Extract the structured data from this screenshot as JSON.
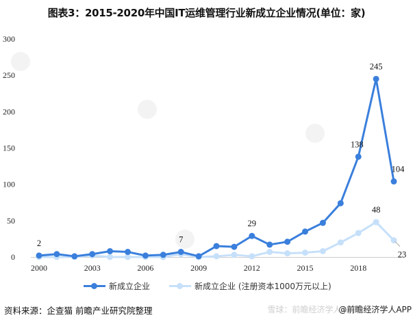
{
  "title": "图表3：2015-2020年中国IT运维管理行业新成立企业情况(单位：家)",
  "chart_data": {
    "type": "line",
    "title": "图表3：2015-2020年中国IT运维管理行业新成立企业情况(单位：家)",
    "xlabel": "",
    "ylabel": "",
    "ylim": [
      0,
      300
    ],
    "yticks": [
      0,
      50,
      100,
      150,
      200,
      250,
      300
    ],
    "x": [
      2000,
      2001,
      2002,
      2003,
      2004,
      2005,
      2006,
      2007,
      2008,
      2009,
      2010,
      2011,
      2012,
      2013,
      2014,
      2015,
      2016,
      2017,
      2018,
      2019,
      2020
    ],
    "xtick_labels": [
      "2000",
      "2003",
      "2006",
      "2009",
      "2012",
      "2015",
      "2018"
    ],
    "grid": false,
    "legend_position": "bottom",
    "series": [
      {
        "name": "新成立企业",
        "color": "#3a7fdc",
        "values": [
          2,
          4,
          1,
          4,
          8,
          7,
          2,
          3,
          7,
          1,
          15,
          14,
          29,
          17,
          21,
          35,
          47,
          74,
          138,
          245,
          104
        ],
        "labeled": {
          "2000": "2",
          "2008": "7",
          "2012": "29",
          "2018": "138",
          "2019": "245",
          "2020": "104"
        }
      },
      {
        "name": "新成立企业 (注册资本1000万元以上)",
        "color": "#c6e0fa",
        "values": [
          0,
          0,
          0,
          2,
          0,
          0,
          0,
          0,
          4,
          0,
          1,
          3,
          1,
          7,
          5,
          6,
          8,
          20,
          33,
          48,
          23
        ],
        "labeled": {
          "2019": "48",
          "2020": "23"
        }
      }
    ]
  },
  "legend": {
    "items": [
      {
        "label": "新成立企业",
        "color": "#3a7fdc"
      },
      {
        "label": "新成立企业 (注册资本1000万元以上)",
        "color": "#c6e0fa"
      }
    ]
  },
  "footer": {
    "source": "资料来源：企查猫 前瞻产业研究院整理",
    "watermark": "雪球：前瞻经济学人APP",
    "credit": "@前瞻经济学人APP"
  }
}
